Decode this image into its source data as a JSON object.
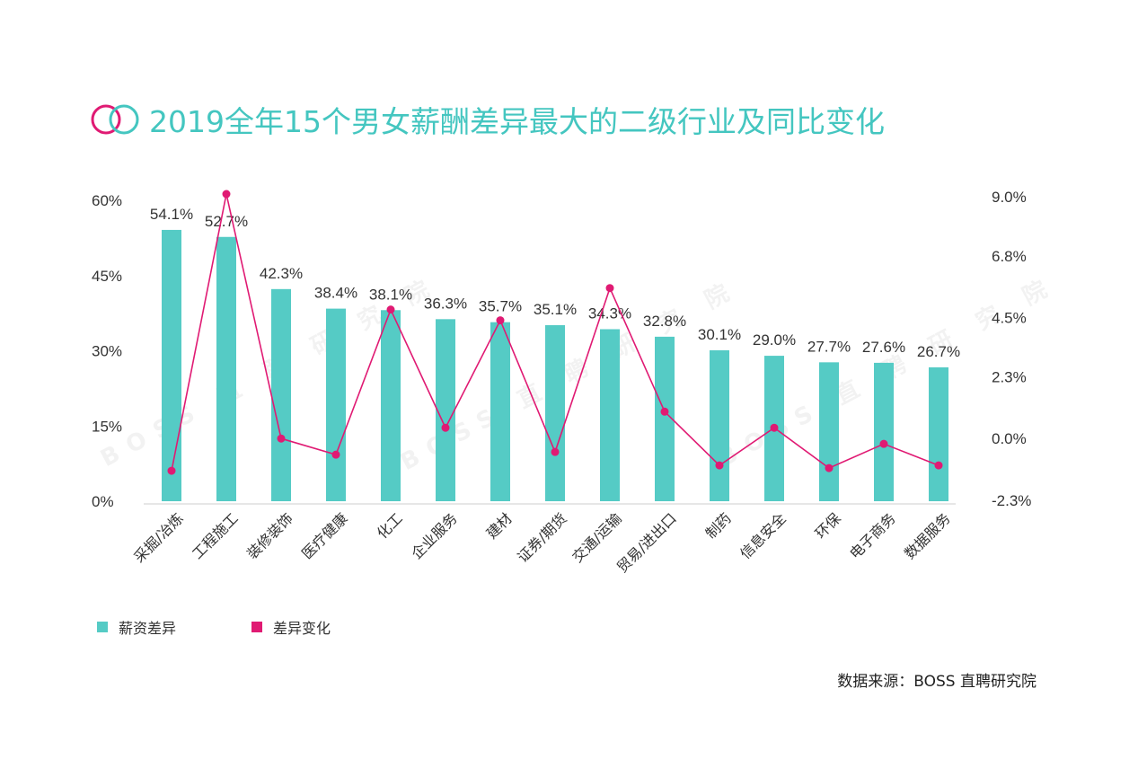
{
  "title": "2019全年15个男女薪酬差异最大的二级行业及同比变化",
  "source": "数据来源：BOSS 直聘研究院",
  "watermark": "BOSS 直 聘 研 究 院",
  "colors": {
    "bar": "#55cbc5",
    "line": "#e01a73",
    "title": "#44c6c0",
    "axis": "#cccccc"
  },
  "chart_data": {
    "type": "bar",
    "categories": [
      "采掘/冶炼",
      "工程施工",
      "装修装饰",
      "医疗健康",
      "化工",
      "企业服务",
      "建材",
      "证券/期货",
      "交通/运输",
      "贸易/进出口",
      "制药",
      "信息安全",
      "环保",
      "电子商务",
      "数据服务"
    ],
    "series": [
      {
        "name": "薪资差异",
        "type": "bar",
        "axis": "left",
        "values": [
          54.1,
          52.7,
          42.3,
          38.4,
          38.1,
          36.3,
          35.7,
          35.1,
          34.3,
          32.8,
          30.1,
          29.0,
          27.7,
          27.6,
          26.7
        ],
        "labels": [
          "54.1%",
          "52.7%",
          "42.3%",
          "38.4%",
          "38.1%",
          "36.3%",
          "35.7%",
          "35.1%",
          "34.3%",
          "32.8%",
          "30.1%",
          "29.0%",
          "27.7%",
          "27.6%",
          "26.7%"
        ]
      },
      {
        "name": "差异变化",
        "type": "line",
        "axis": "right",
        "values": [
          -1.2,
          9.1,
          0.0,
          -0.6,
          4.8,
          0.4,
          4.4,
          -0.5,
          5.6,
          1.0,
          -1.0,
          0.4,
          -1.1,
          -0.2,
          -1.0
        ]
      }
    ],
    "y_left": {
      "ticks": [
        0,
        15,
        30,
        45,
        60
      ],
      "tick_labels": [
        "0%",
        "15%",
        "30%",
        "45%",
        "60%"
      ],
      "range": [
        0,
        60
      ]
    },
    "y_right": {
      "ticks": [
        -2.3,
        0.0,
        2.3,
        4.5,
        6.8,
        9.0
      ],
      "tick_labels": [
        "-2.3%",
        "0.0%",
        "2.3%",
        "4.5%",
        "6.8%",
        "9.0%"
      ],
      "range": [
        -2.3,
        9.0
      ]
    },
    "legend_position": "bottom-left"
  }
}
